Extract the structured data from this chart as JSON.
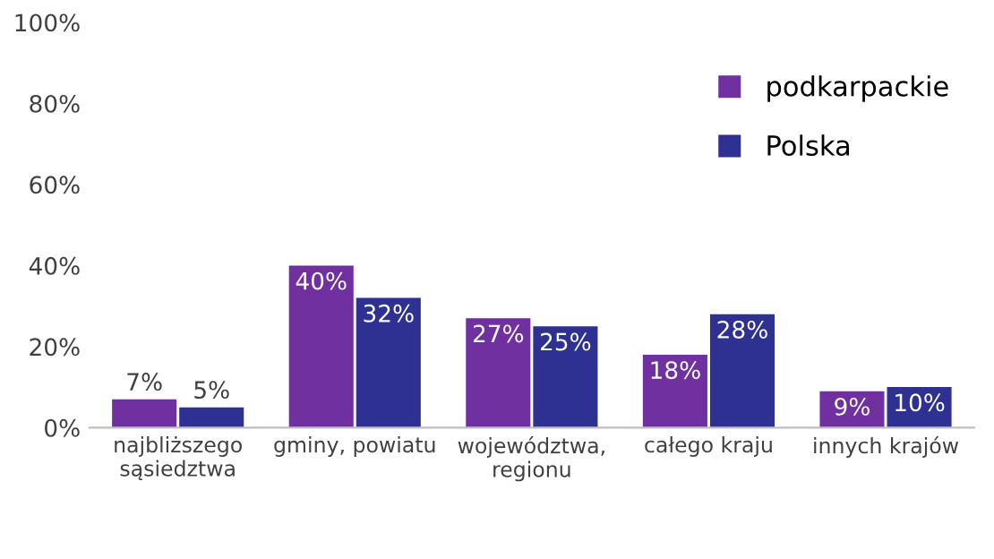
{
  "chart_data": {
    "type": "bar",
    "categories": [
      "najbliższego\nsąsiedztwa",
      "gminy, powiatu",
      "województwa,\nregionu",
      "całego kraju",
      "innych krajów"
    ],
    "series": [
      {
        "name": "podkarpackie",
        "color": "#7030a0",
        "values": [
          7,
          40,
          27,
          18,
          9
        ],
        "value_labels": [
          "7%",
          "40%",
          "27%",
          "18%",
          "9%"
        ]
      },
      {
        "name": "Polska",
        "color": "#2e3192",
        "values": [
          5,
          32,
          25,
          28,
          10
        ],
        "value_labels": [
          "5%",
          "32%",
          "25%",
          "28%",
          "10%"
        ]
      }
    ],
    "ylim": [
      0,
      100
    ],
    "yticks": [
      {
        "value": 0,
        "label": "0%"
      },
      {
        "value": 20,
        "label": "20%"
      },
      {
        "value": 40,
        "label": "40%"
      },
      {
        "value": 60,
        "label": "60%"
      },
      {
        "value": 80,
        "label": "80%"
      },
      {
        "value": 100,
        "label": "100%"
      }
    ],
    "grid": false,
    "legend": "top right"
  }
}
